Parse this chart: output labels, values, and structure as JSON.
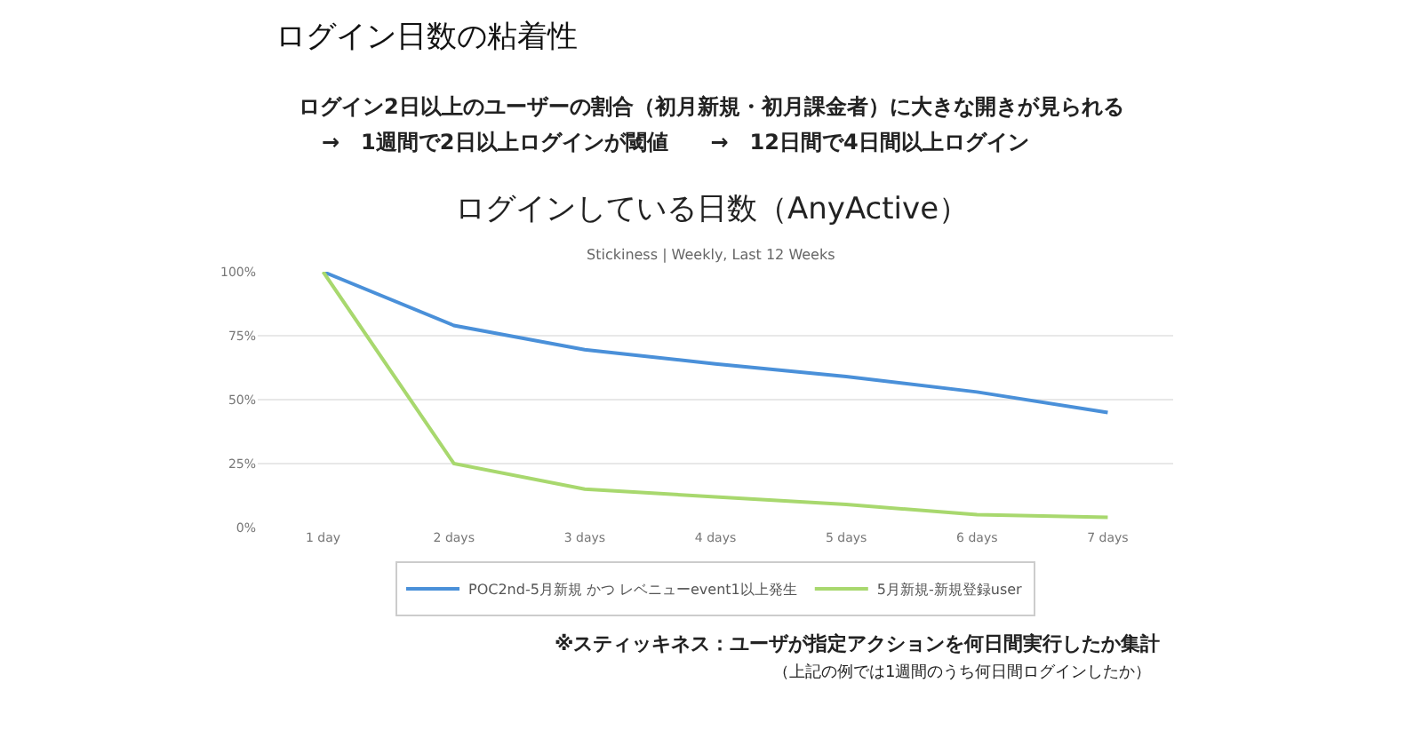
{
  "chart_data": {
    "type": "line",
    "title": "ログイン日数の粘着性",
    "subtitle": "Stickiness | Weekly, Last 12 Weeks",
    "annotations": [
      "ログイン2日以上のユーザーの割合（初月新規・初月課金者）に大きな開きが見られる",
      "→　1週間で2日以上ログインが閾値　　→　12日間で4日間以上ログイン",
      "ログインしている日数（AnyActive）",
      "※スティッキネス：ユーザが指定アクションを何日間実行したか集計",
      "（上記の例では1週間のうち何日間ログインしたか）"
    ],
    "categories": [
      "1 day",
      "2 days",
      "3 days",
      "4 days",
      "5 days",
      "6 days",
      "7 days"
    ],
    "series": [
      {
        "name": "POC2nd-5月新規 かつ レベニューevent1以上発生",
        "color": "#4a90d9",
        "values": [
          100,
          79,
          69.5,
          64,
          59,
          53,
          45
        ]
      },
      {
        "name": "5月新規-新規登録user",
        "color": "#a8d86e",
        "values": [
          100,
          25,
          15,
          12,
          9,
          5,
          4
        ]
      }
    ],
    "ylim": [
      0,
      100
    ],
    "yticks": [
      {
        "value": 0,
        "label": "0%"
      },
      {
        "value": 25,
        "label": "25%"
      },
      {
        "value": 50,
        "label": "50%"
      },
      {
        "value": 75,
        "label": "75%"
      },
      {
        "value": 100,
        "label": "100%"
      }
    ],
    "grid": "y",
    "legend": "bottom",
    "marker": "none",
    "line_style": "solid"
  }
}
